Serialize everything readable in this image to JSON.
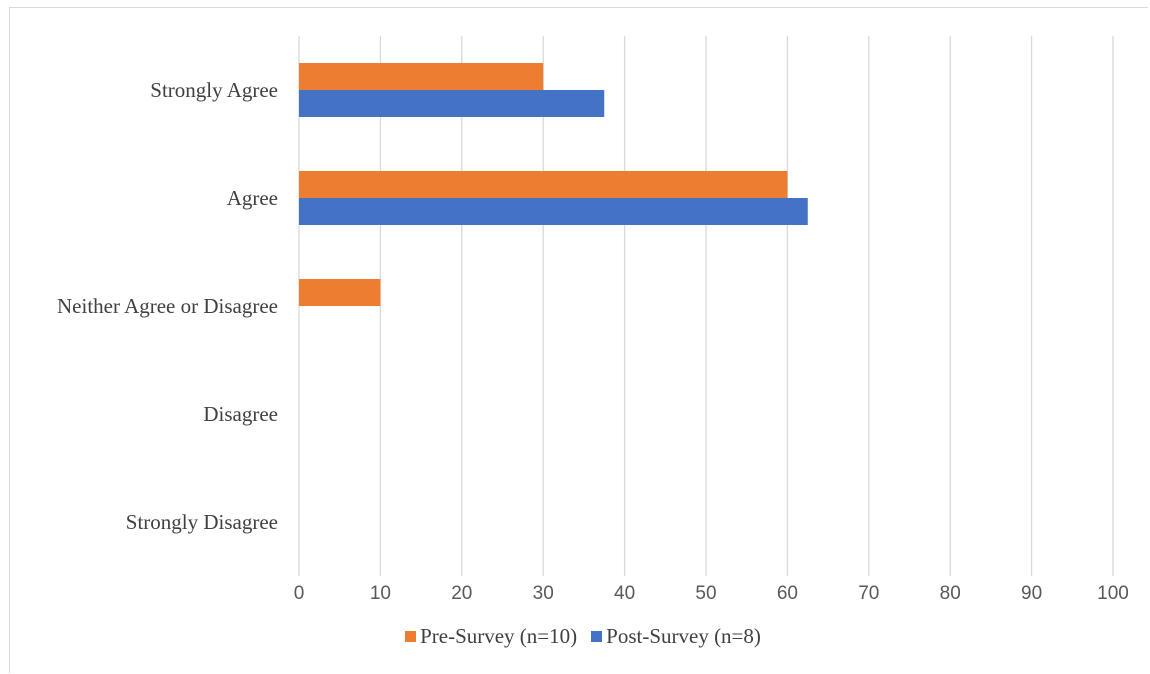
{
  "chart_data": {
    "type": "bar",
    "orientation": "horizontal",
    "categories": [
      "Strongly Agree",
      "Agree",
      "Neither Agree or Disagree",
      "Disagree",
      "Strongly Disagree"
    ],
    "series": [
      {
        "name": "Pre-Survey (n=10)",
        "color": "#ED7D31",
        "values": [
          30,
          60,
          10,
          0,
          0
        ]
      },
      {
        "name": "Post-Survey (n=8)",
        "color": "#4472C4",
        "values": [
          37.5,
          62.5,
          0,
          0,
          0
        ]
      }
    ],
    "xlim": [
      0,
      100
    ],
    "xticks": [
      "0",
      "10",
      "20",
      "30",
      "40",
      "50",
      "60",
      "70",
      "80",
      "90",
      "100"
    ],
    "grid": "vertical",
    "legend_position": "bottom",
    "title": "",
    "xlabel": "",
    "ylabel": ""
  }
}
